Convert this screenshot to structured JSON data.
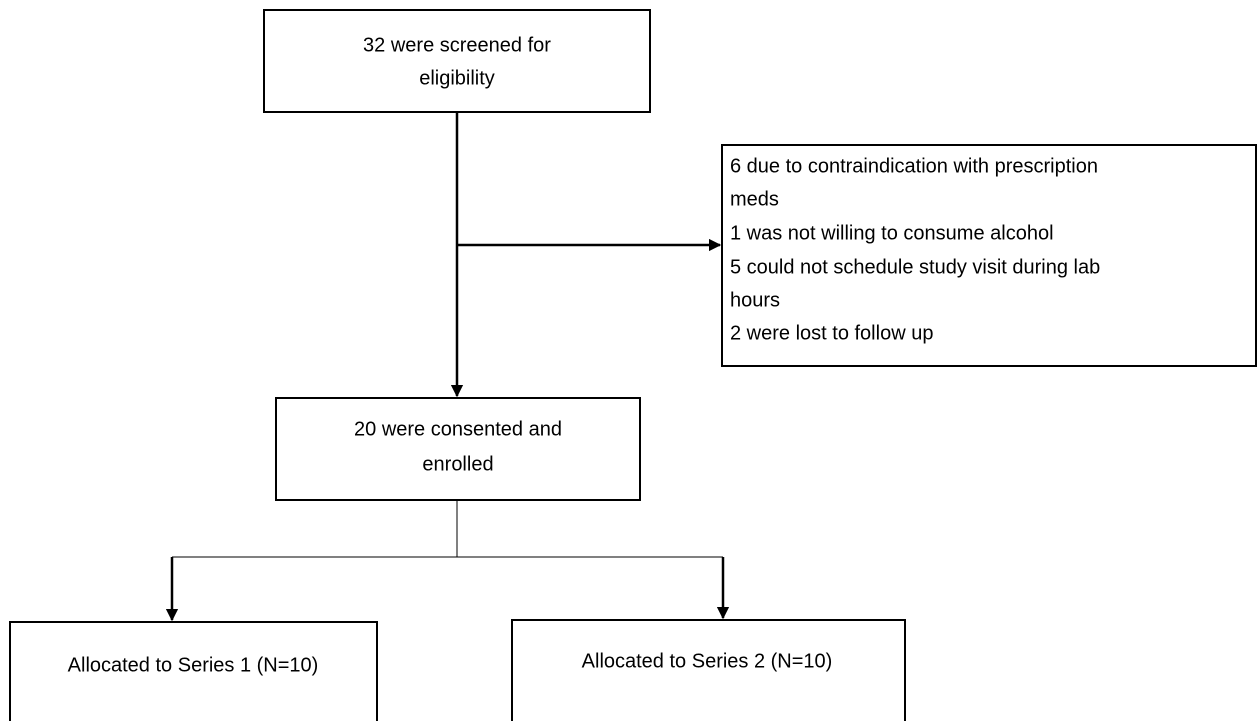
{
  "nodes": [
    {
      "lines": [
        "32 were screened for",
        "eligibility"
      ]
    },
    {
      "lines": [
        "6 due to contraindication with prescription",
        "meds",
        "1 was not willing to consume alcohol",
        "5 could not schedule study visit during lab",
        "hours",
        "2 were lost to follow up"
      ]
    },
    {
      "lines": [
        "20 were consented and",
        "enrolled"
      ]
    },
    {
      "lines": [
        "Allocated to Series 1 (N=10)"
      ]
    },
    {
      "lines": [
        "Allocated to Series 2 (N=10)"
      ]
    }
  ]
}
